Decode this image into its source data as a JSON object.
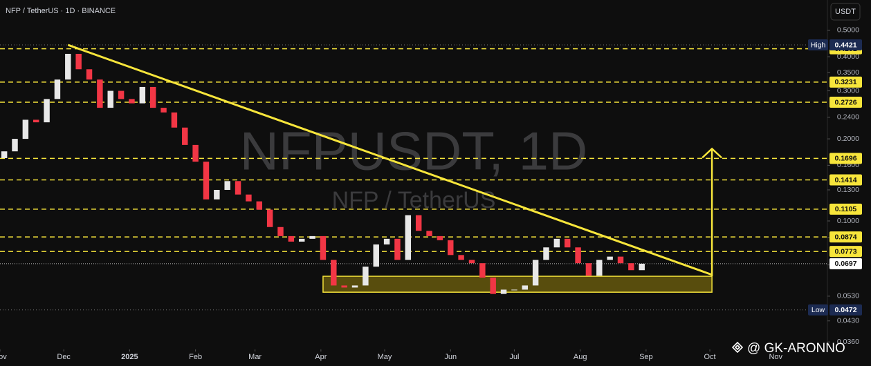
{
  "header": {
    "symbol": "NFP / TetherUS · 1D · BINANCE",
    "currency": "USDT"
  },
  "watermark": {
    "ticker": "NFPUSDT, 1D",
    "name": "NFP / TetherUS"
  },
  "author": "@ GK-ARONNO",
  "chart_data": {
    "type": "candlestick",
    "log_scale": true,
    "up_color": "#e8e8e8",
    "down_color": "#f23645",
    "level_color": "#f7e53b",
    "x": [
      2,
      7,
      12,
      17,
      22,
      27,
      32,
      37,
      42,
      47,
      52,
      57,
      62,
      67,
      72,
      77,
      82,
      87,
      92,
      97,
      102,
      107,
      112,
      117,
      122,
      127,
      132,
      137,
      142,
      147,
      152,
      157,
      162,
      167,
      172,
      177,
      182,
      187,
      192,
      197,
      202,
      207,
      212,
      217,
      222,
      227,
      232,
      237,
      242,
      247,
      252,
      257,
      262,
      267,
      272,
      277,
      282,
      287,
      292,
      297,
      302
    ],
    "open": [
      0.17,
      0.18,
      0.2,
      0.235,
      0.23,
      0.28,
      0.33,
      0.41,
      0.36,
      0.33,
      0.26,
      0.3,
      0.28,
      0.27,
      0.31,
      0.26,
      0.25,
      0.22,
      0.19,
      0.165,
      0.12,
      0.13,
      0.14,
      0.125,
      0.118,
      0.11,
      0.095,
      0.088,
      0.084,
      0.086,
      0.088,
      0.072,
      0.058,
      0.057,
      0.058,
      0.068,
      0.082,
      0.086,
      0.072,
      0.105,
      0.092,
      0.088,
      0.085,
      0.075,
      0.072,
      0.07,
      0.062,
      0.054,
      0.056,
      0.056,
      0.058,
      0.072,
      0.08,
      0.086,
      0.08,
      0.07,
      0.063,
      0.072,
      0.074,
      0.07,
      0.066
    ],
    "high": {
      "label": "High",
      "value": 0.4421
    },
    "low": {
      "label": "Low",
      "value": 0.0472
    },
    "close": [
      0.18,
      0.2,
      0.235,
      0.23,
      0.28,
      0.33,
      0.41,
      0.36,
      0.33,
      0.26,
      0.3,
      0.28,
      0.27,
      0.31,
      0.26,
      0.25,
      0.22,
      0.19,
      0.165,
      0.12,
      0.13,
      0.14,
      0.125,
      0.118,
      0.11,
      0.095,
      0.088,
      0.084,
      0.086,
      0.088,
      0.072,
      0.058,
      0.057,
      0.058,
      0.068,
      0.082,
      0.086,
      0.072,
      0.105,
      0.092,
      0.088,
      0.085,
      0.075,
      0.072,
      0.07,
      0.062,
      0.054,
      0.056,
      0.056,
      0.058,
      0.072,
      0.08,
      0.086,
      0.08,
      0.07,
      0.063,
      0.072,
      0.074,
      0.07,
      0.066,
      0.0697
    ],
    "xlim": [
      0,
      389
    ],
    "xticks": [
      {
        "value": 0,
        "label": "Nov"
      },
      {
        "value": 30,
        "label": "Dec"
      },
      {
        "value": 61,
        "label": "2025"
      },
      {
        "value": 92,
        "label": "Feb"
      },
      {
        "value": 120,
        "label": "Mar"
      },
      {
        "value": 151,
        "label": "Apr"
      },
      {
        "value": 181,
        "label": "May"
      },
      {
        "value": 212,
        "label": "Jun"
      },
      {
        "value": 242,
        "label": "Jul"
      },
      {
        "value": 273,
        "label": "Aug"
      },
      {
        "value": 304,
        "label": "Sep"
      },
      {
        "value": 334,
        "label": "Oct"
      },
      {
        "value": 365,
        "label": "Nov"
      }
    ],
    "ylim": [
      0.034,
      0.646
    ],
    "yticks": [
      {
        "value": 0.5,
        "label": "0.5000"
      },
      {
        "value": 0.4,
        "label": "0.4000"
      },
      {
        "value": 0.35,
        "label": "0.3500"
      },
      {
        "value": 0.3,
        "label": "0.3000"
      },
      {
        "value": 0.24,
        "label": "0.2400"
      },
      {
        "value": 0.2,
        "label": "0.2000"
      },
      {
        "value": 0.16,
        "label": "0.1600"
      },
      {
        "value": 0.13,
        "label": "0.1300"
      },
      {
        "value": 0.1,
        "label": "0.1000"
      },
      {
        "value": 0.087,
        "label": "0.0870"
      },
      {
        "value": 0.069,
        "label": "0.0690"
      },
      {
        "value": 0.053,
        "label": "0.0530"
      },
      {
        "value": 0.043,
        "label": "0.0430"
      },
      {
        "value": 0.036,
        "label": "0.0360"
      }
    ],
    "levels": [
      0.4281,
      0.3231,
      0.2726,
      0.1696,
      0.1414,
      0.1105,
      0.0874,
      0.0773
    ],
    "last": 0.0697,
    "trendline": {
      "x": [
        32,
        335
      ],
      "y": [
        0.4421,
        0.0635
      ]
    },
    "support_zone": {
      "x": [
        152,
        335
      ],
      "y": [
        0.0548,
        0.0627
      ]
    },
    "target_arrow": {
      "x": 335,
      "y": [
        0.0627,
        0.184
      ]
    }
  }
}
